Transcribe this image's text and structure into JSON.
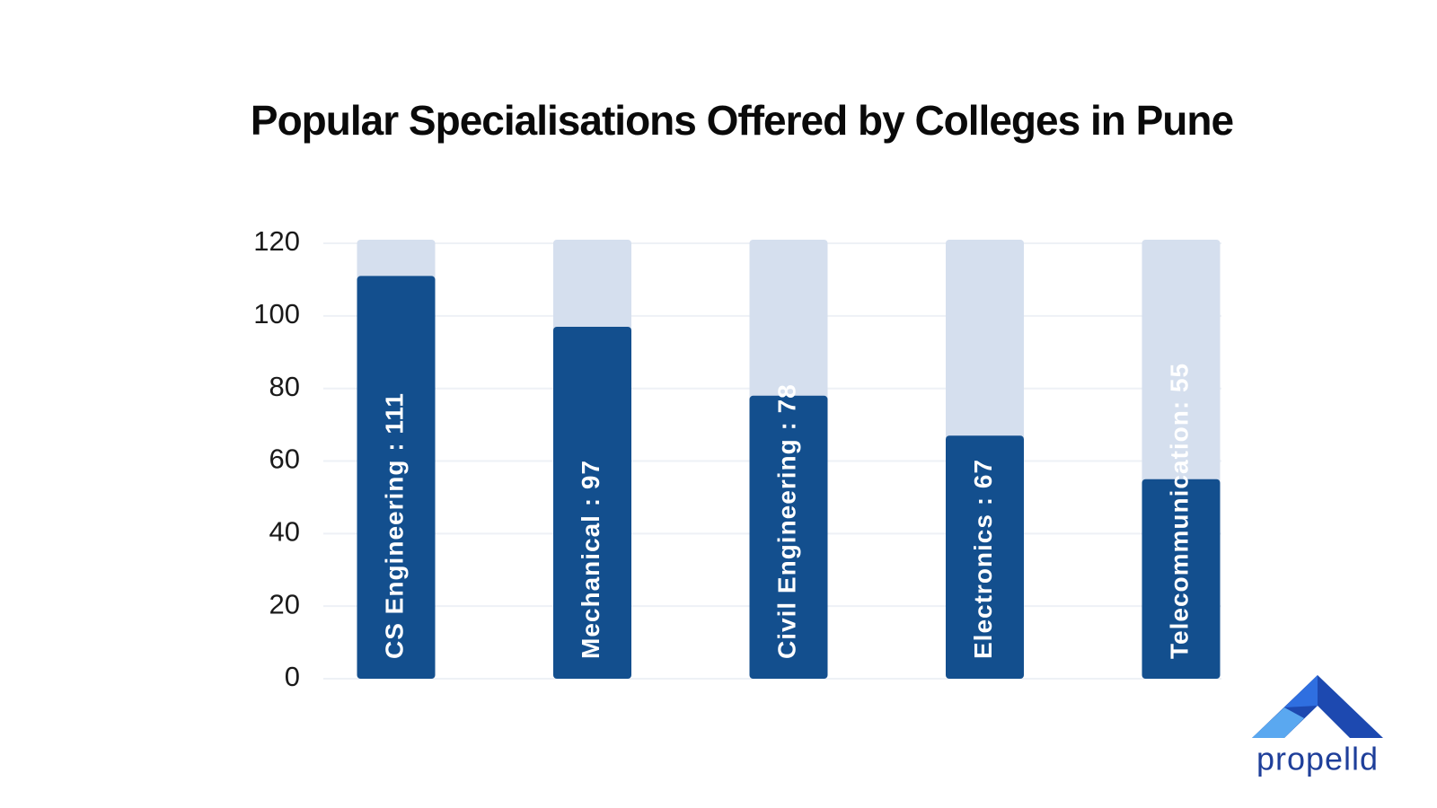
{
  "chart_data": {
    "type": "bar",
    "title": "Popular Specialisations Offered by Colleges in Pune",
    "values": [
      111,
      97,
      78,
      67,
      55
    ],
    "value_labels": [
      "CS Engineering : 111",
      "Mechanical : 97",
      "Civil Engineering : 78",
      "Electronics : 67",
      "Telecommunication: 55"
    ],
    "color": "#134f8e",
    "background_color": "#d5dfee",
    "ylim": [
      0,
      121
    ],
    "yticks": [
      0,
      20,
      40,
      60,
      80,
      100,
      120
    ],
    "grid": true
  },
  "brand": "propelld"
}
